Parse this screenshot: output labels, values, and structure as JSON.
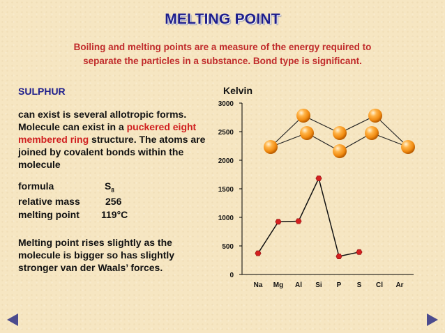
{
  "title": "MELTING POINT",
  "subtitle_line1": "Boiling and melting points are a measure of the energy required to",
  "subtitle_line2": "separate the particles in a substance. Bond type is significant.",
  "element_name": "SULPHUR",
  "description": {
    "part1": "can exist is several allotropic forms. Molecule can exist in a ",
    "highlight": "puckered eight membered ring",
    "part2": " structure. The atoms are joined by covalent bonds within the molecule"
  },
  "properties": {
    "formula_label": "formula",
    "formula_symbol": "S",
    "formula_subscript": "8",
    "relative_mass_label": "relative mass",
    "relative_mass_value": "256",
    "melting_point_label": "melting point",
    "melting_point_value": "119°C"
  },
  "note": "Melting point rises slightly as the molecule is bigger so has slightly stronger van der Waals’ forces.",
  "colors": {
    "title": "#1e1e8c",
    "subtitle": "#c02a2a",
    "highlight": "#d02020",
    "data_point": "#d42020",
    "sphere": "#f39018",
    "nav_arrow": "#4b4b8e"
  },
  "chart_data": {
    "type": "line",
    "ylabel": "Kelvin",
    "xlabel": "",
    "categories": [
      "Na",
      "Mg",
      "Al",
      "Si",
      "P",
      "S",
      "Cl",
      "Ar"
    ],
    "series": [
      {
        "values": [
          371,
          923,
          933,
          1683,
          317,
          392,
          null,
          null
        ]
      }
    ],
    "yticks": [
      0,
      500,
      1000,
      1500,
      2000,
      2500,
      3000
    ],
    "ylim": [
      0,
      3000
    ],
    "grid": false
  },
  "navigation": {
    "prev_icon": "triangle-left-icon",
    "next_icon": "triangle-right-icon"
  }
}
